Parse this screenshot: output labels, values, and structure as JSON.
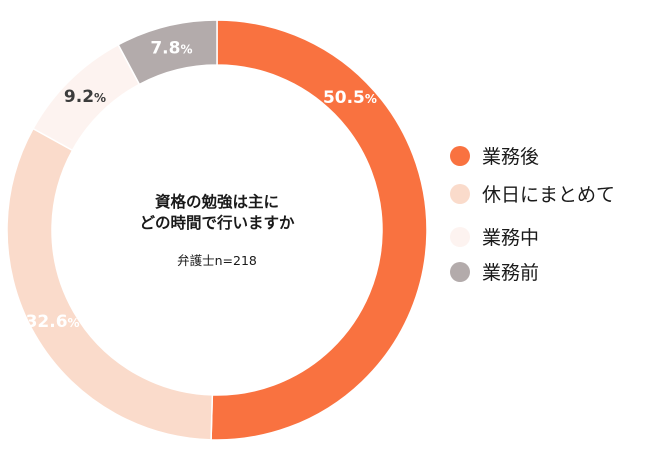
{
  "chart_data": {
    "type": "pie",
    "variant": "donut",
    "title": "資格の勉強は主に\nどの時間で行いますか",
    "note": "弁護士n=218",
    "categories": [
      "業務後",
      "休日にまとめて",
      "業務中",
      "業務前"
    ],
    "values": [
      50.5,
      32.6,
      9.2,
      7.8
    ],
    "value_labels": [
      "50.5",
      "32.6",
      "9.2",
      "7.8"
    ],
    "unit": "%",
    "colors": [
      "#f97240",
      "#fadbcb",
      "#fdf3f0",
      "#b3abab"
    ],
    "label_colors": [
      "#ffffff",
      "#ffffff",
      "#3c3c3c",
      "#ffffff"
    ],
    "start_angle_deg": 0,
    "direction": "clockwise",
    "legend_position": "right"
  }
}
